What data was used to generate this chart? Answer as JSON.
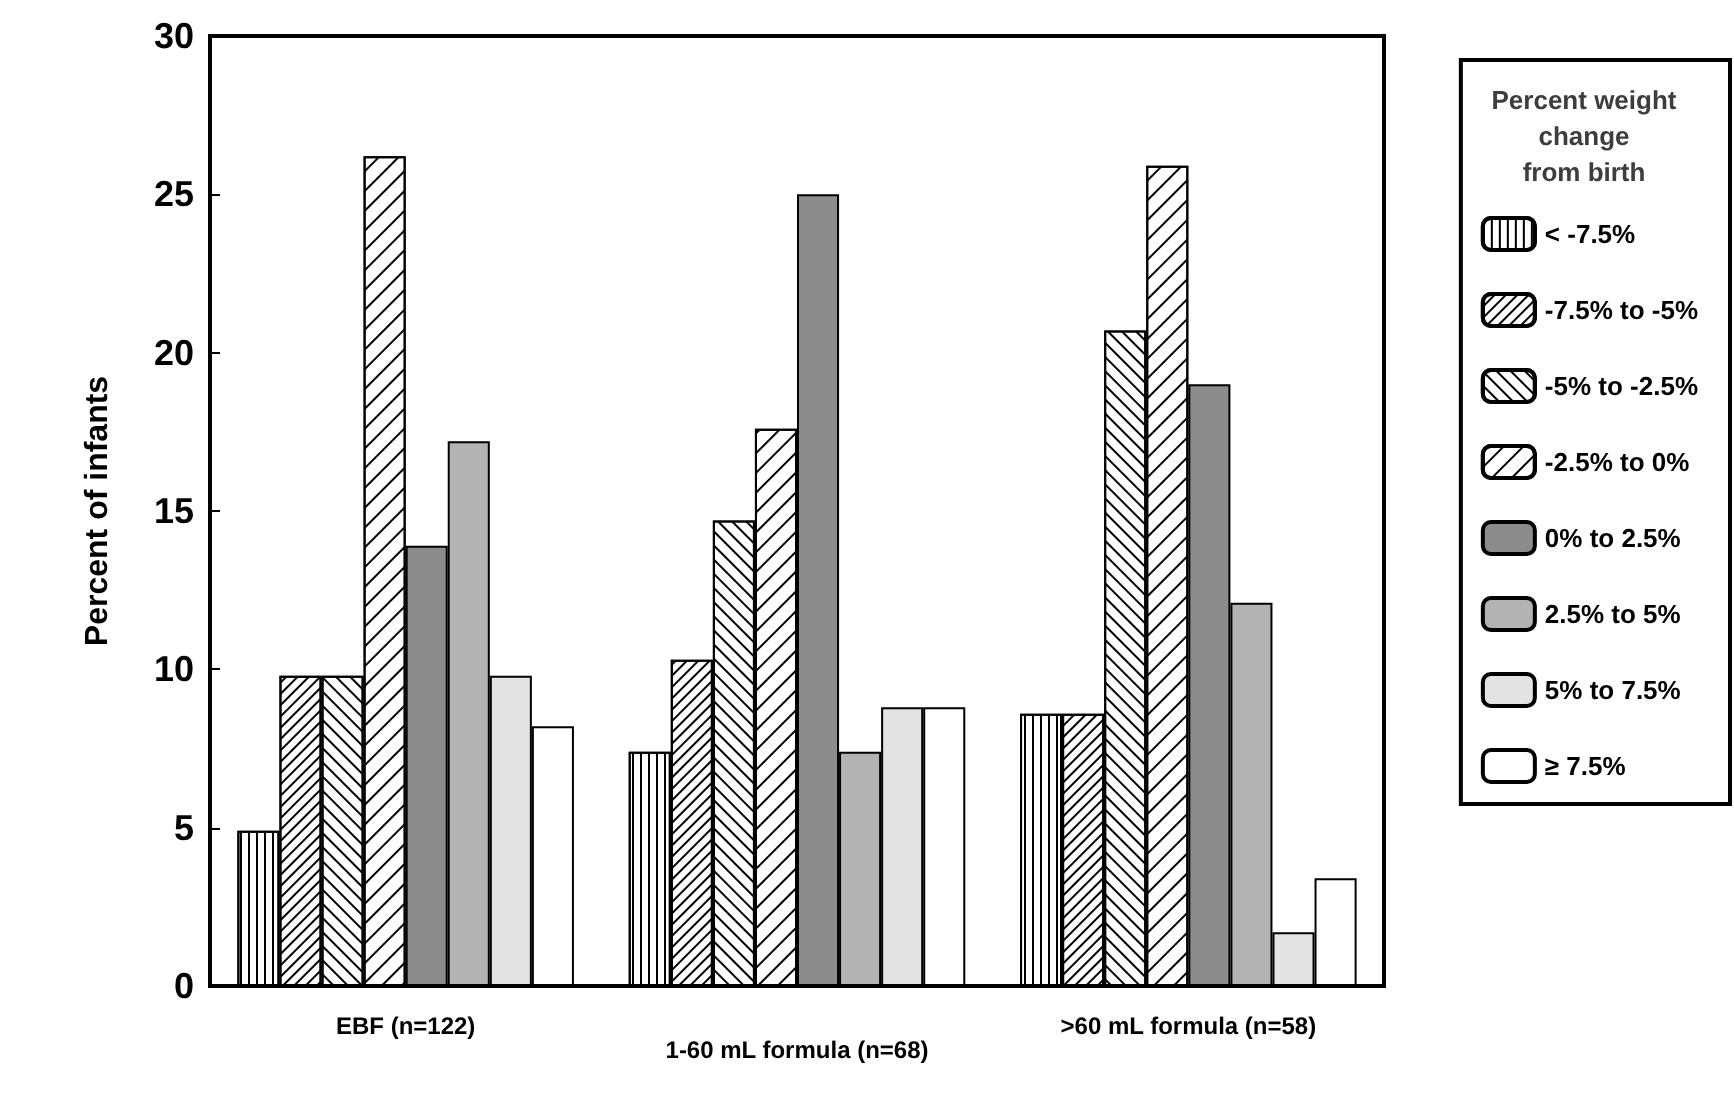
{
  "chart_data": {
    "type": "bar",
    "ylabel": "Percent of infants",
    "legend_title": "Percent weight change from birth",
    "categories": [
      "EBF (n=122)",
      "1-60 mL formula (n=68)",
      ">60 mL formula (n=58)"
    ],
    "series": [
      {
        "name": "< -7.5%",
        "color": "#ffffff",
        "values": [
          4.9,
          7.4,
          8.6
        ]
      },
      {
        "name": "-7.5% to -5%",
        "color": "#ffffff",
        "values": [
          9.8,
          10.3,
          8.6
        ]
      },
      {
        "name": "-5% to -2.5%",
        "color": "#ffffff",
        "values": [
          9.8,
          14.7,
          20.7
        ]
      },
      {
        "name": "-2.5% to 0%",
        "color": "#ffffff",
        "values": [
          26.2,
          17.6,
          25.9
        ]
      },
      {
        "name": "0% to 2.5%",
        "color": "#8c8c8c",
        "values": [
          13.9,
          25.0,
          19.0
        ]
      },
      {
        "name": "2.5% to 5%",
        "color": "#b3b3b3",
        "values": [
          17.2,
          7.4,
          12.1
        ]
      },
      {
        "name": "5% to 7.5%",
        "color": "#e3e3e3",
        "values": [
          9.8,
          8.8,
          1.7
        ]
      },
      {
        "name": "≥ 7.5%",
        "color": "#ffffff",
        "values": [
          8.2,
          8.8,
          3.4
        ]
      }
    ],
    "ylim": [
      0,
      30
    ],
    "yticks": [
      0,
      5,
      10,
      15,
      20,
      25,
      30
    ],
    "grid": false,
    "legend": "right"
  }
}
